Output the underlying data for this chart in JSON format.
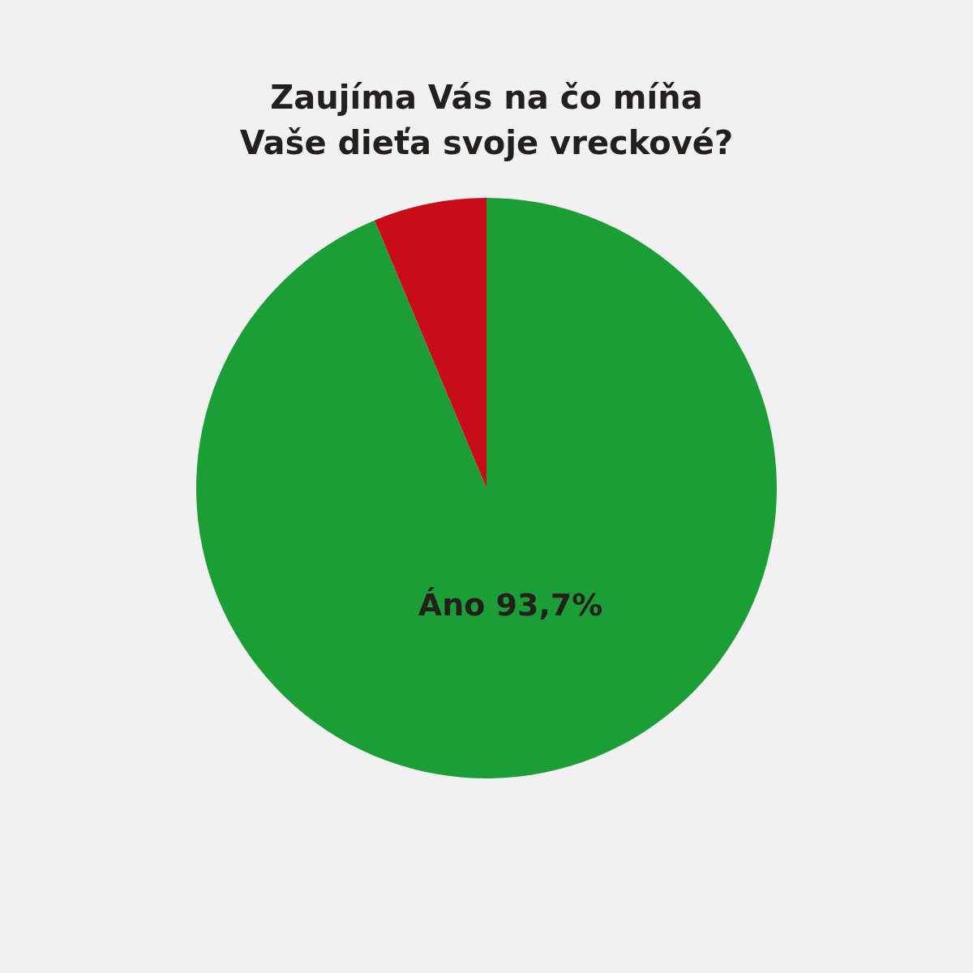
{
  "chart_data": {
    "type": "pie",
    "title": "Zaujíma Vás na čo míňa\nVaše dieťa svoje vreckové?",
    "categories": [
      "Áno",
      null
    ],
    "values": [
      93.7,
      6.3
    ],
    "colors": [
      "#1b9e35",
      "#c90c19"
    ],
    "value_labels": [
      "93,7%",
      null
    ],
    "legend": false
  }
}
